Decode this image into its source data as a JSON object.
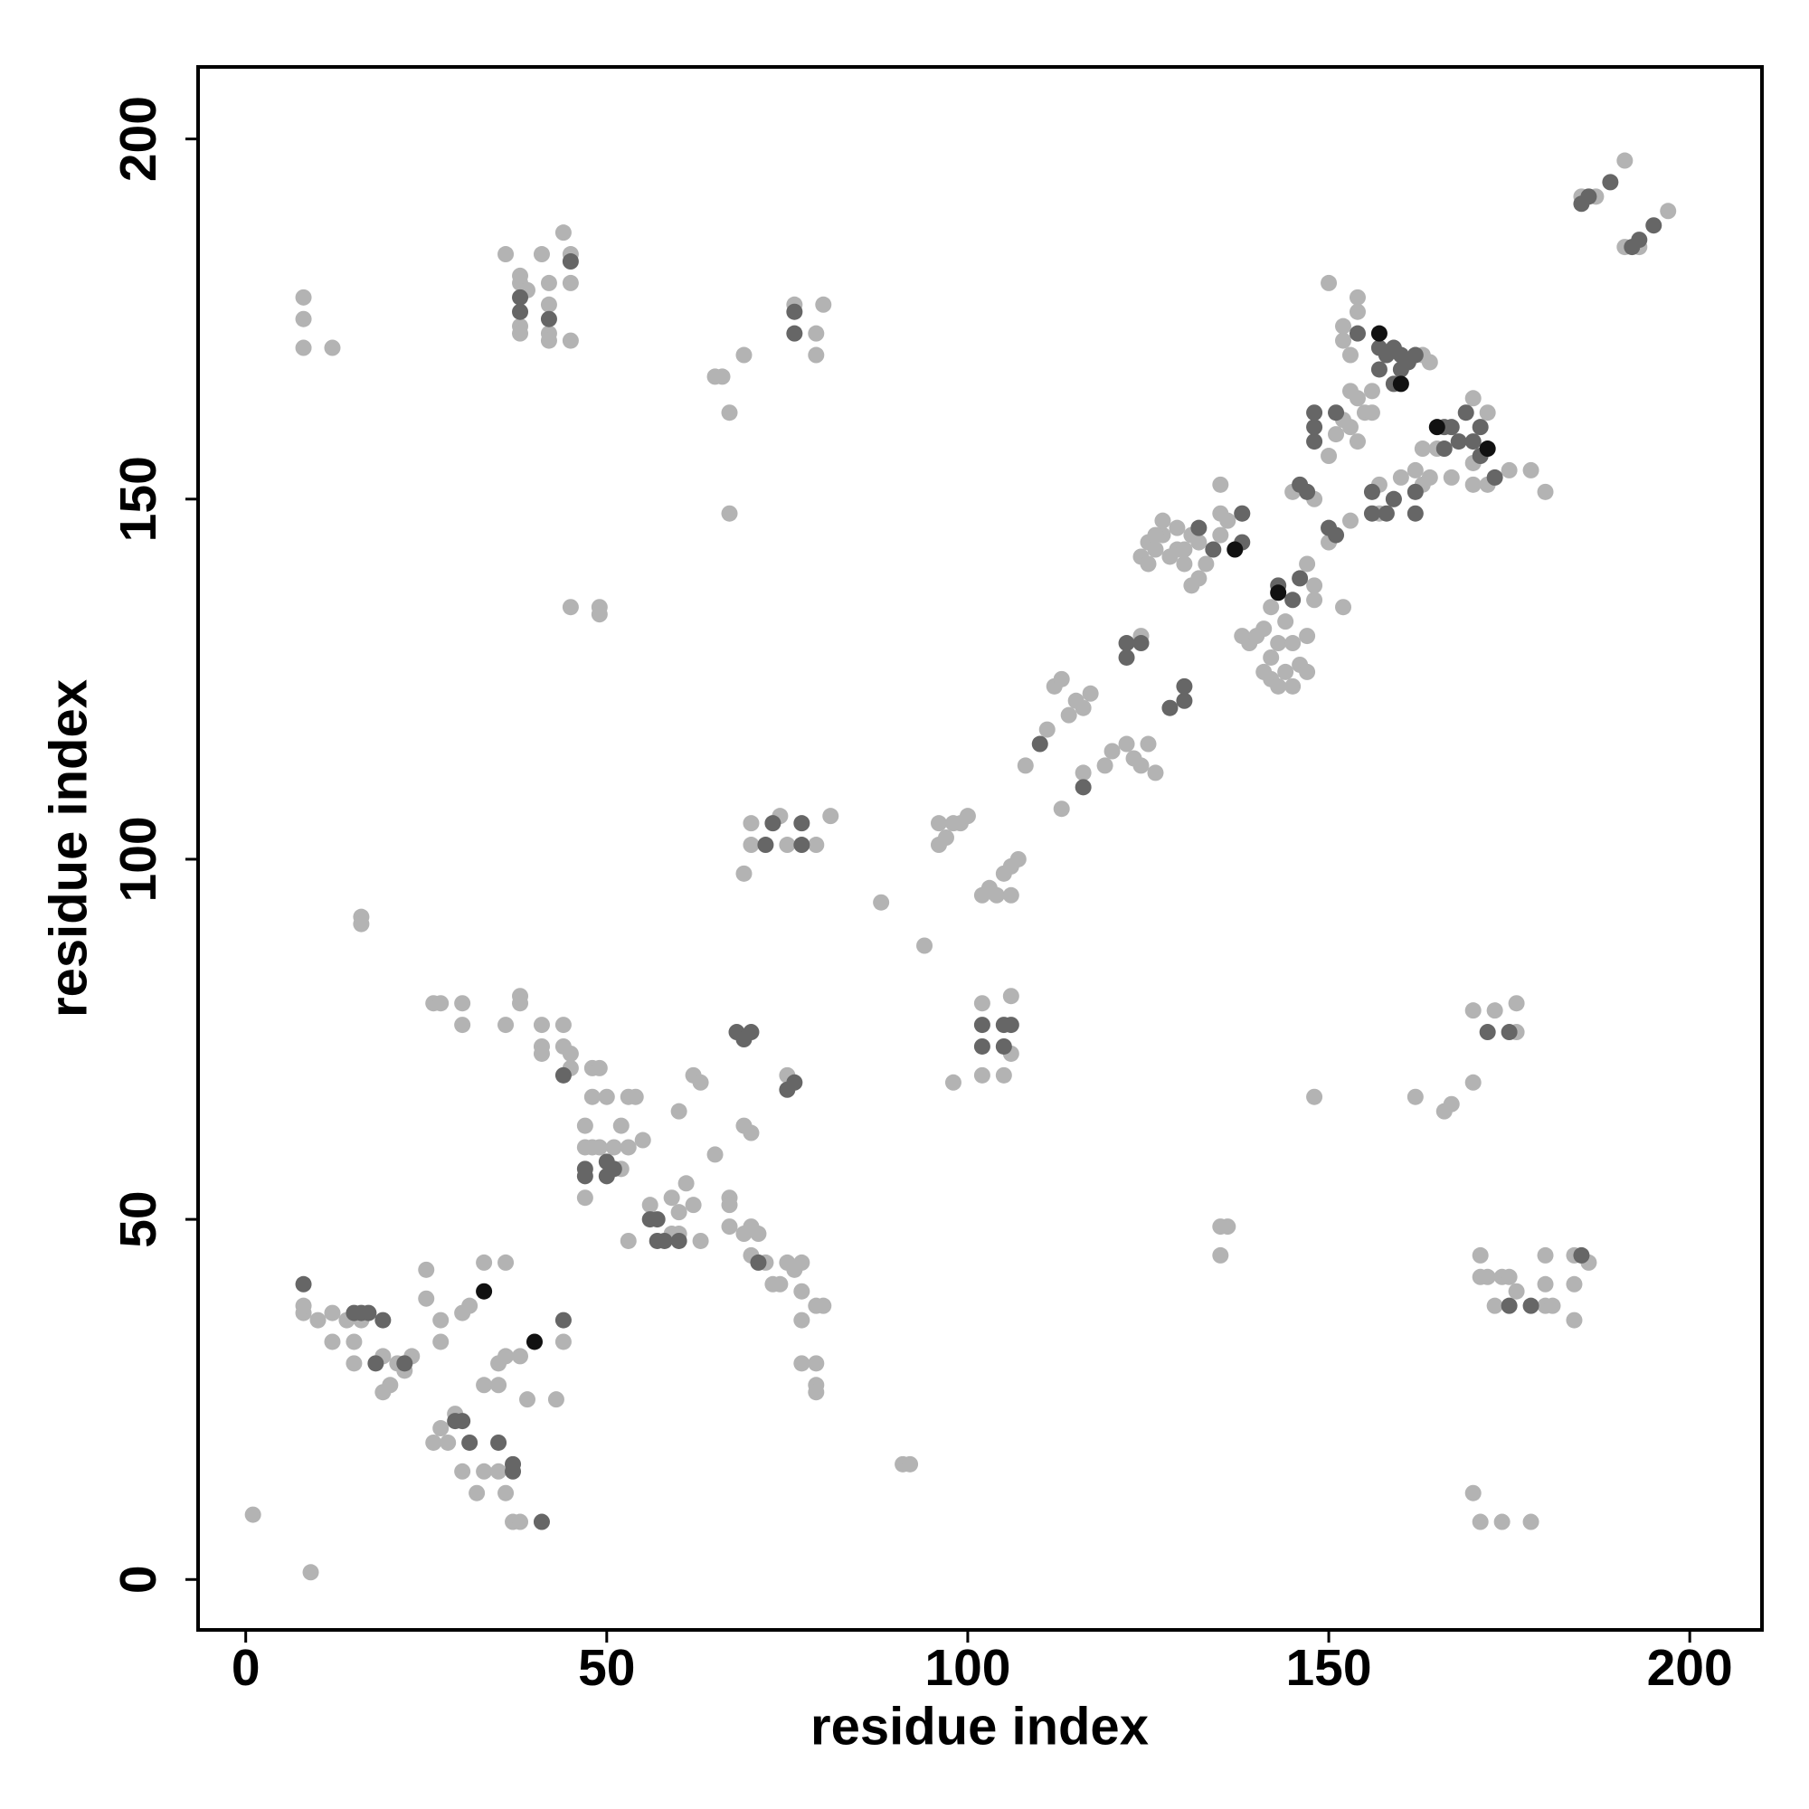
{
  "chart_data": {
    "type": "scatter",
    "x_label": "residue index",
    "y_label": "residue index",
    "xlim": [
      -6.6,
      210
    ],
    "ylim": [
      -7,
      210
    ],
    "xticks": [
      0,
      50,
      100,
      150,
      200
    ],
    "yticks": [
      0,
      50,
      100,
      150,
      200
    ],
    "grid": false,
    "series": [
      {
        "color": "#b3b3b3",
        "x": [
          1,
          9,
          8,
          8,
          10,
          12,
          12,
          14,
          15,
          15,
          16,
          19,
          19,
          20,
          21,
          22,
          23,
          25,
          25,
          26,
          27,
          27,
          27,
          28,
          29,
          30,
          30,
          31,
          32,
          33,
          33,
          33,
          35,
          35,
          35,
          36,
          36,
          37,
          38,
          38,
          39,
          43,
          44,
          36,
          16,
          16,
          26,
          27,
          30,
          30,
          36,
          38,
          38,
          41,
          41,
          41,
          44,
          44,
          45,
          45,
          48,
          48,
          49,
          47,
          47,
          48,
          47,
          49,
          50,
          51,
          52,
          52,
          53,
          53,
          54,
          55,
          53,
          56,
          59,
          60,
          60,
          59,
          61,
          62,
          63,
          65,
          67,
          67,
          67,
          69,
          70,
          70,
          71,
          72,
          73,
          74,
          75,
          76,
          77,
          77,
          77,
          77,
          79,
          79,
          79,
          79,
          80,
          69,
          70,
          62,
          63,
          60,
          75,
          8,
          8,
          8,
          12,
          36,
          38,
          38,
          38,
          38,
          39,
          41,
          42,
          42,
          42,
          42,
          44,
          45,
          45,
          45,
          65,
          66,
          67,
          67,
          69,
          76,
          79,
          79,
          80,
          45,
          49,
          49,
          69,
          70,
          70,
          74,
          75,
          79,
          81,
          88,
          94,
          91,
          92,
          96,
          96,
          97,
          98,
          99,
          100,
          102,
          103,
          104,
          105,
          106,
          106,
          107,
          108,
          102,
          102,
          105,
          106,
          106,
          98,
          111,
          112,
          113,
          114,
          115,
          116,
          117,
          116,
          119,
          120,
          122,
          123,
          124,
          125,
          126,
          124,
          113,
          124,
          125,
          126,
          127,
          128,
          129,
          130,
          131,
          127,
          129,
          132,
          133,
          131,
          132,
          135,
          135,
          136,
          138,
          135,
          130,
          126,
          125,
          138,
          139,
          140,
          141,
          142,
          142,
          142,
          143,
          144,
          144,
          145,
          145,
          146,
          147,
          147,
          143,
          141,
          148,
          148,
          147,
          152,
          150,
          153,
          148,
          145,
          150,
          152,
          152,
          153,
          154,
          154,
          153,
          154,
          155,
          153,
          154,
          156,
          156,
          152,
          150,
          151,
          158,
          163,
          164,
          157,
          159,
          160,
          162,
          163,
          164,
          163,
          165,
          167,
          170,
          170,
          172,
          172,
          170,
          175,
          178,
          180,
          157,
          185,
          187,
          191,
          191,
          193,
          197,
          135,
          136,
          135,
          148,
          162,
          166,
          167,
          170,
          170,
          173,
          176,
          176,
          170,
          171,
          174,
          178,
          171,
          171,
          172,
          173,
          174,
          175,
          176,
          180,
          180,
          180,
          181,
          184,
          184,
          184,
          186
        ],
        "y": [
          9,
          1,
          37,
          38,
          36,
          37,
          33,
          36,
          33,
          30,
          36,
          26,
          31,
          27,
          30,
          29,
          31,
          39,
          43,
          19,
          21,
          33,
          36,
          19,
          23,
          37,
          15,
          38,
          12,
          15,
          27,
          44,
          30,
          27,
          15,
          12,
          31,
          8,
          31,
          8,
          25,
          25,
          33,
          44,
          92,
          91,
          80,
          80,
          80,
          77,
          77,
          80,
          81,
          77,
          74,
          73,
          77,
          74,
          71,
          73,
          71,
          67,
          71,
          63,
          60,
          60,
          53,
          60,
          67,
          60,
          57,
          63,
          67,
          60,
          67,
          61,
          47,
          52,
          53,
          51,
          48,
          48,
          55,
          52,
          47,
          59,
          53,
          52,
          49,
          48,
          49,
          45,
          48,
          44,
          41,
          41,
          44,
          43,
          44,
          40,
          36,
          30,
          30,
          27,
          26,
          38,
          38,
          63,
          62,
          70,
          69,
          65,
          70,
          178,
          175,
          171,
          171,
          184,
          180,
          181,
          174,
          173,
          179,
          184,
          180,
          177,
          173,
          172,
          187,
          184,
          180,
          172,
          167,
          167,
          162,
          148,
          170,
          177,
          170,
          173,
          177,
          135,
          135,
          134,
          98,
          105,
          102,
          106,
          102,
          102,
          106,
          94,
          88,
          16,
          16,
          105,
          102,
          103,
          105,
          105,
          106,
          95,
          96,
          95,
          98,
          99,
          95,
          100,
          113,
          80,
          70,
          70,
          81,
          73,
          69,
          118,
          124,
          125,
          120,
          122,
          121,
          123,
          112,
          113,
          115,
          116,
          114,
          113,
          116,
          112,
          131,
          107,
          142,
          144,
          143,
          145,
          142,
          143,
          141,
          145,
          147,
          146,
          144,
          141,
          138,
          139,
          145,
          148,
          147,
          148,
          152,
          143,
          145,
          141,
          131,
          130,
          131,
          132,
          135,
          128,
          125,
          130,
          133,
          126,
          124,
          130,
          127,
          126,
          131,
          124,
          126,
          136,
          138,
          141,
          135,
          144,
          147,
          150,
          151,
          180,
          174,
          172,
          170,
          178,
          176,
          165,
          164,
          162,
          160,
          158,
          162,
          165,
          161,
          156,
          159,
          170,
          170,
          169,
          152,
          150,
          153,
          154,
          152,
          153,
          157,
          157,
          153,
          155,
          152,
          152,
          162,
          164,
          154,
          154,
          151,
          148,
          192,
          192,
          197,
          185,
          185,
          190,
          49,
          49,
          45,
          67,
          67,
          65,
          66,
          69,
          79,
          79,
          80,
          76,
          12,
          8,
          8,
          8,
          45,
          42,
          42,
          38,
          42,
          42,
          40,
          38,
          41,
          45,
          38,
          45,
          41,
          36,
          44
        ]
      },
      {
        "color": "#666666",
        "x": [
          8,
          15,
          16,
          17,
          19,
          18,
          22,
          29,
          30,
          31,
          35,
          37,
          37,
          41,
          44,
          38,
          38,
          42,
          45,
          44,
          47,
          47,
          50,
          51,
          50,
          57,
          57,
          56,
          58,
          60,
          68,
          69,
          70,
          71,
          75,
          76,
          76,
          76,
          72,
          73,
          77,
          77,
          102,
          102,
          105,
          105,
          106,
          110,
          116,
          122,
          122,
          124,
          128,
          130,
          130,
          132,
          134,
          138,
          138,
          143,
          145,
          146,
          147,
          146,
          150,
          151,
          148,
          148,
          148,
          151,
          154,
          157,
          157,
          158,
          159,
          160,
          161,
          162,
          160,
          159,
          156,
          156,
          158,
          159,
          162,
          162,
          166,
          166,
          167,
          168,
          169,
          170,
          171,
          173,
          172,
          175,
          175,
          178,
          185,
          185,
          186,
          189,
          192,
          193,
          195,
          171
        ],
        "y": [
          41,
          37,
          37,
          37,
          36,
          30,
          30,
          22,
          22,
          19,
          19,
          16,
          15,
          8,
          36,
          178,
          176,
          175,
          183,
          70,
          57,
          56,
          58,
          57,
          56,
          50,
          47,
          50,
          47,
          47,
          76,
          75,
          76,
          44,
          68,
          69,
          176,
          173,
          102,
          105,
          102,
          105,
          77,
          74,
          77,
          74,
          77,
          116,
          110,
          128,
          130,
          130,
          121,
          122,
          124,
          146,
          143,
          144,
          148,
          138,
          136,
          139,
          151,
          152,
          146,
          145,
          162,
          160,
          158,
          162,
          173,
          168,
          171,
          170,
          171,
          170,
          169,
          170,
          168,
          166,
          151,
          148,
          148,
          150,
          148,
          151,
          160,
          157,
          160,
          158,
          162,
          158,
          156,
          153,
          76,
          76,
          38,
          38,
          45,
          191,
          192,
          194,
          185,
          186,
          188,
          160
        ]
      },
      {
        "color": "#111111",
        "x": [
          33,
          40,
          137,
          143,
          157,
          160,
          165,
          172
        ],
        "y": [
          40,
          33,
          143,
          137,
          173,
          166,
          160,
          157
        ]
      }
    ]
  }
}
